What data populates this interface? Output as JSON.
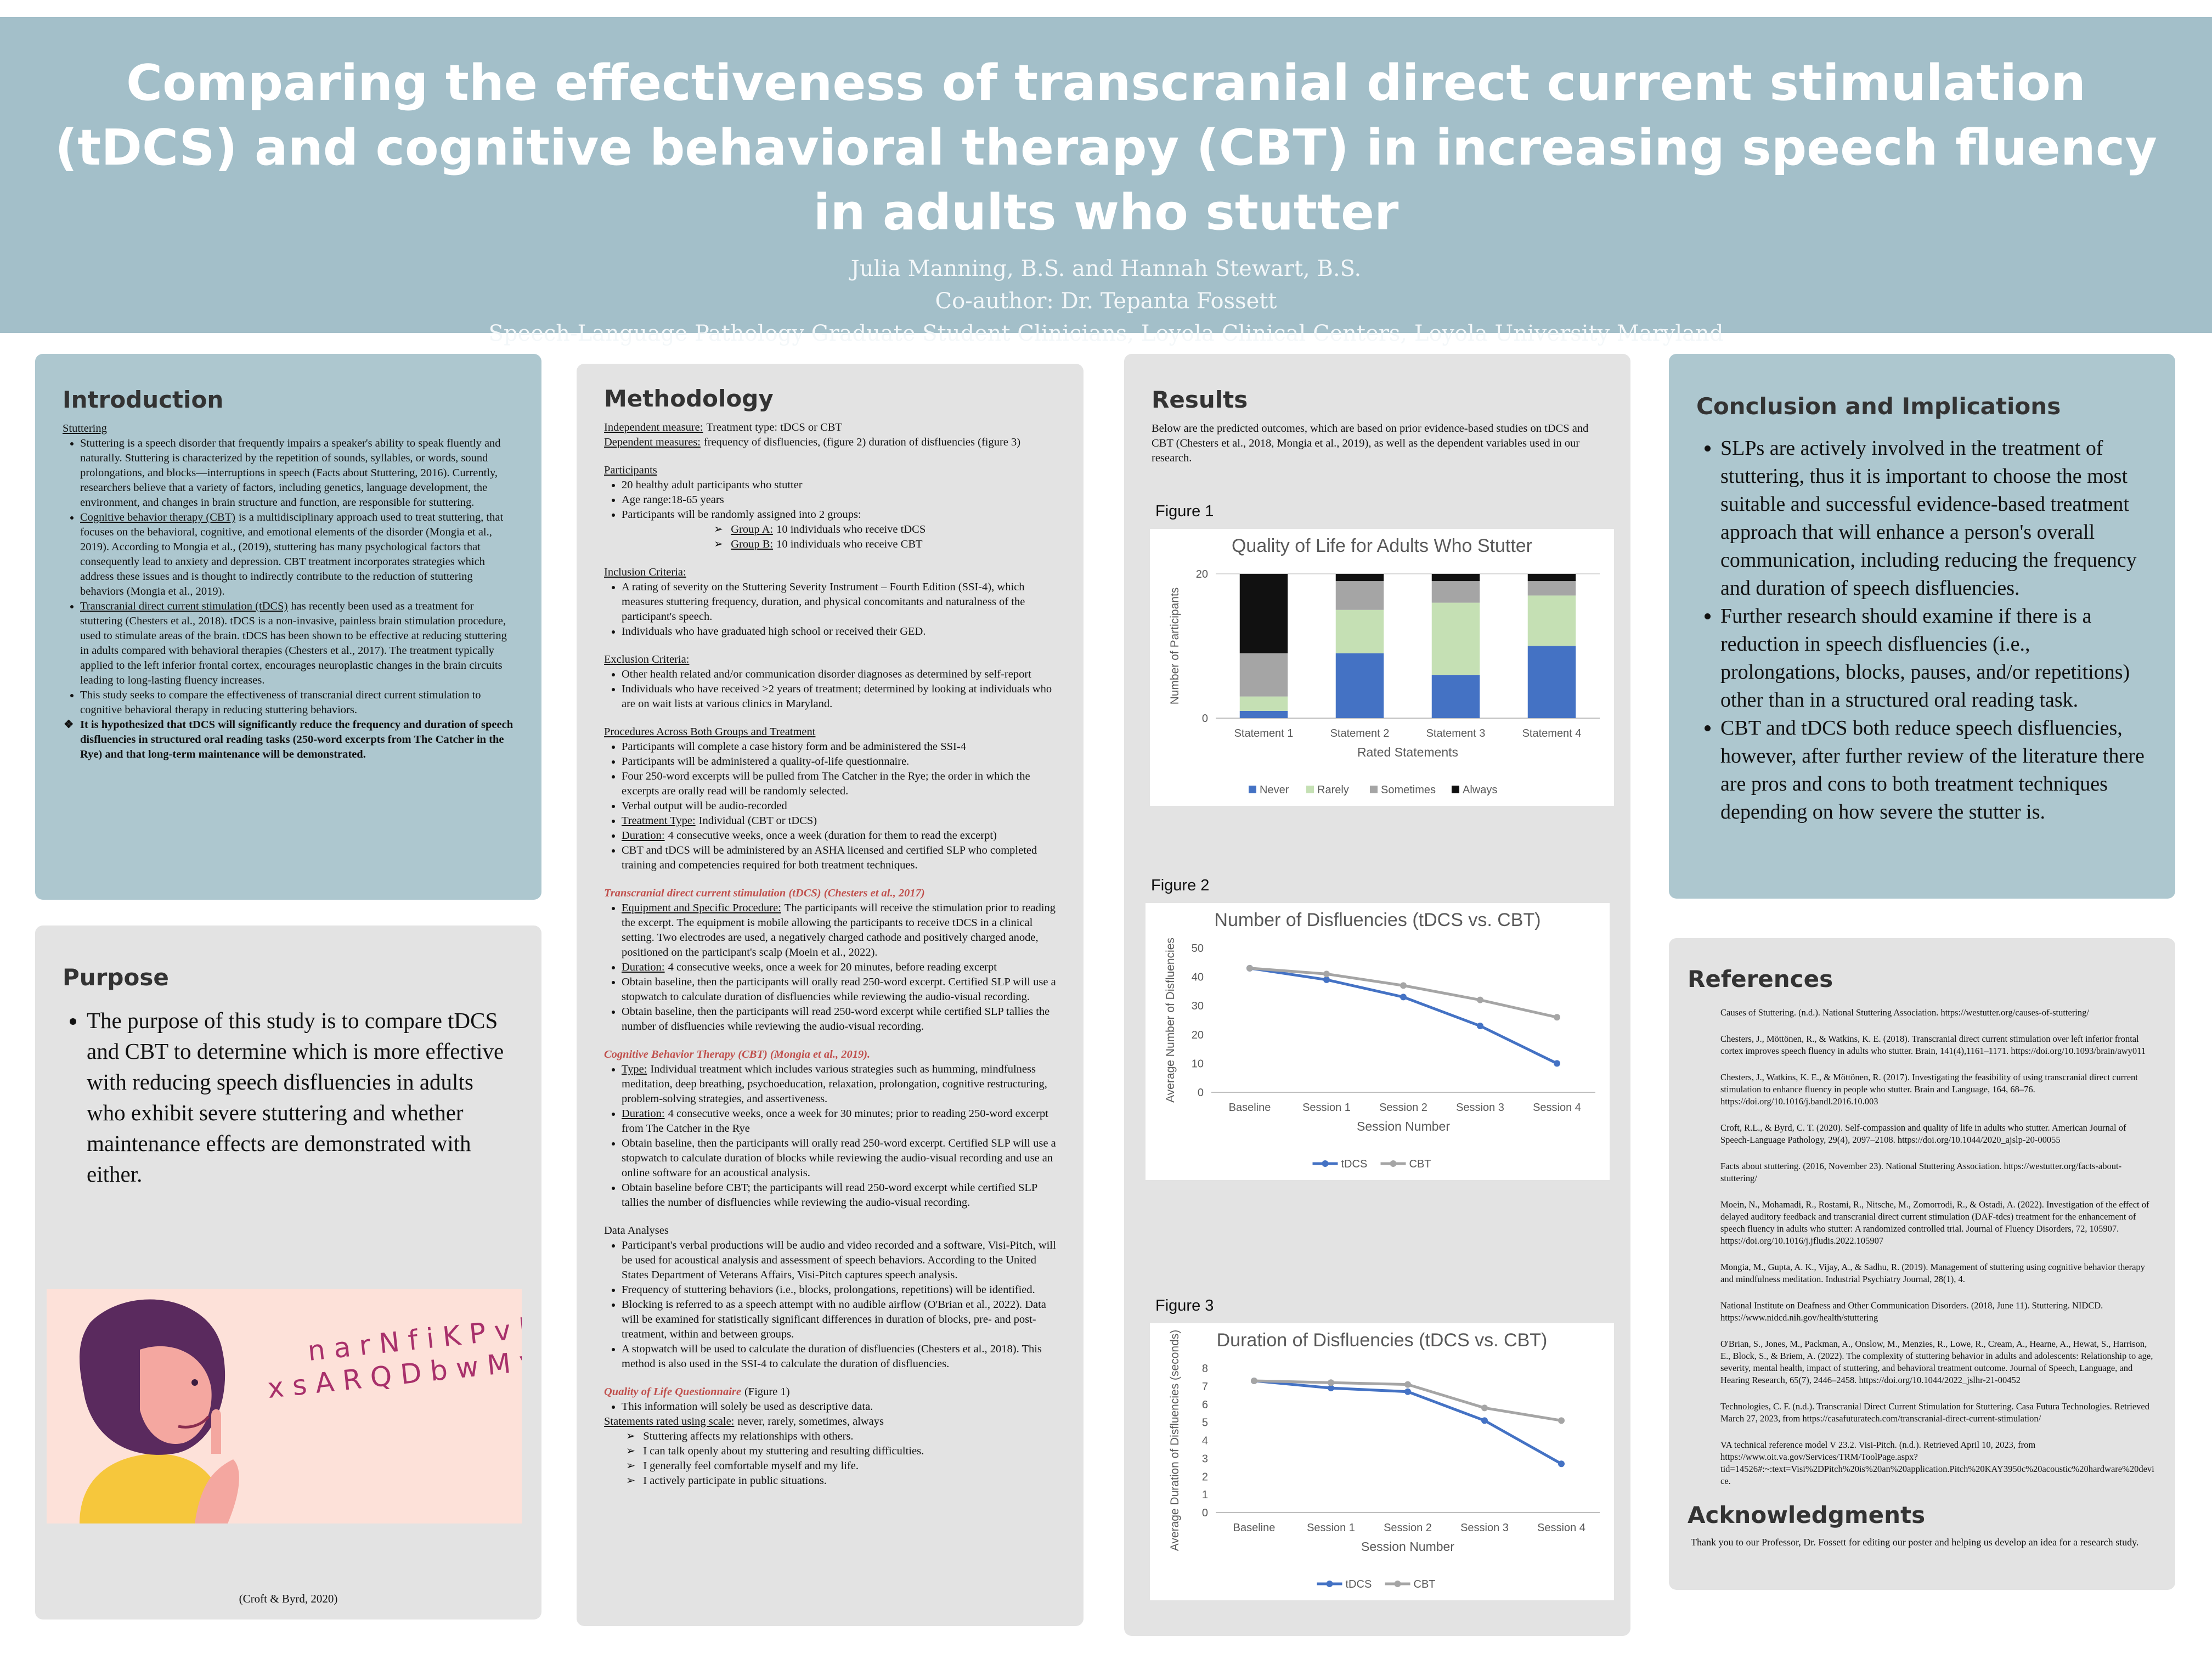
{
  "header": {
    "title": "Comparing the effectiveness of transcranial direct current stimulation (tDCS) and cognitive behavioral therapy (CBT) in increasing speech fluency in adults who stutter",
    "authors": "Julia Manning, B.S. and Hannah Stewart, B.S.",
    "coauthor": "Co-author: Dr. Tepanta Fossett",
    "affiliation": "Speech-Language Pathology Graduate Student Clinicians, Loyola Clinical Centers, Loyola University Maryland"
  },
  "introduction": {
    "heading": "Introduction",
    "subheading": "Stuttering",
    "items": [
      "Stuttering is a speech disorder that frequently impairs a speaker's ability to speak fluently and naturally. Stuttering is characterized by the repetition of sounds, syllables, or words, sound prolongations, and blocks—interruptions in speech (Facts about Stuttering, 2016). Currently, researchers believe that a variety of factors, including genetics, language development, the environment, and changes in brain structure and function, are responsible for stuttering.",
      {
        "label": "Cognitive behavior therapy (CBT)",
        "text": "is a multidisciplinary approach used to treat stuttering, that focuses on the behavioral, cognitive, and emotional elements of the disorder (Mongia et al., 2019). According to Mongia et al., (2019), stuttering has many psychological factors that consequently lead to anxiety and depression. CBT treatment incorporates strategies which address these issues and is thought to indirectly contribute to the reduction of stuttering behaviors (Mongia et al., 2019)."
      },
      {
        "label": "Transcranial direct current stimulation (tDCS)",
        "text": "has recently been used as a treatment for stuttering (Chesters et al., 2018). tDCS is a non-invasive, painless brain stimulation procedure, used to stimulate areas of the brain. tDCS has been shown to be effective at reducing stuttering in adults compared with behavioral therapies (Chesters et al., 2017). The treatment typically applied to the left inferior frontal cortex, encourages neuroplastic changes in the brain circuits leading to long-lasting fluency increases."
      },
      "This study seeks to compare the effectiveness of transcranial direct current stimulation to cognitive behavioral therapy in reducing stuttering behaviors."
    ],
    "hypothesis": "It is hypothesized that tDCS will significantly reduce the frequency and duration of speech disfluencies in structured oral reading tasks (250-word excerpts from The Catcher in the Rye) and that long-term maintenance will be demonstrated."
  },
  "purpose": {
    "heading": "Purpose",
    "text": "The purpose of this study is to compare tDCS and CBT to determine which is more effective with reducing speech disfluencies in adults who exhibit severe stuttering and whether maintenance effects are demonstrated with either.",
    "illustration_letters": [
      "n a r N f i K P v h S",
      "x s A R Q D b w M y F E G"
    ],
    "caption": "(Croft & Byrd, 2020)"
  },
  "methodology": {
    "heading": "Methodology",
    "blocks": [
      {
        "lines": [
          {
            "label": "Independent measure:",
            "text": "Treatment type: tDCS or CBT"
          },
          {
            "label": "Dependent measures:",
            "text": "frequency of disfluencies, (figure 2) duration of disfluencies (figure 3)"
          }
        ]
      },
      {
        "heading": "Participants",
        "items": [
          "20 healthy adult participants who stutter",
          "Age range:18-65 years",
          "Participants will be randomly assigned into 2 groups:"
        ],
        "arrows": [
          {
            "label": "Group A:",
            "text": "10 individuals who receive tDCS"
          },
          {
            "label": "Group B:",
            "text": "10 individuals who receive CBT"
          }
        ]
      },
      {
        "heading": "Inclusion Criteria:",
        "items": [
          "A rating of severity on the Stuttering Severity Instrument – Fourth Edition (SSI-4), which measures stuttering frequency, duration, and physical concomitants and naturalness of the participant's speech.",
          "Individuals who have graduated high school or received their GED."
        ]
      },
      {
        "heading": "Exclusion Criteria:",
        "items": [
          "Other health related and/or communication disorder diagnoses as determined by self-report",
          "Individuals who have received >2 years of treatment; determined by looking at individuals who are on wait lists at various clinics in Maryland."
        ]
      },
      {
        "heading": "Procedures Across Both Groups and Treatment",
        "items": [
          "Participants will complete a case history form and be administered the SSI-4",
          "Participants will be administered a quality-of-life questionnaire.",
          "Four 250-word excerpts will be pulled from The Catcher in the Rye; the order in which the excerpts are orally read will be randomly selected.",
          "Verbal output will be audio-recorded",
          {
            "label": "Treatment Type:",
            "text": "Individual (CBT or tDCS)"
          },
          {
            "label": "Duration:",
            "text": "4 consecutive weeks, once a week (duration for them to read the excerpt)"
          },
          "CBT and tDCS will be administered by an ASHA licensed and certified SLP who completed training and competencies required for both treatment techniques."
        ]
      },
      {
        "subtitle": "Transcranial direct current stimulation (tDCS) (Chesters et al., 2017)",
        "items": [
          {
            "label": "Equipment and Specific Procedure:",
            "text": "The participants will receive the stimulation prior to reading the excerpt. The equipment is mobile allowing the participants to receive tDCS in a clinical setting. Two electrodes are used, a negatively charged cathode and positively charged anode, positioned on the participant's scalp (Moein et al., 2022)."
          },
          {
            "label": "Duration:",
            "text": "4 consecutive weeks, once a week for 20 minutes, before reading excerpt"
          },
          "Obtain baseline, then the participants will orally read 250-word excerpt. Certified SLP will use a stopwatch to calculate duration of disfluencies while reviewing the audio-visual recording.",
          "Obtain baseline, then the participants will read 250-word excerpt while certified SLP tallies the number of disfluencies while reviewing the audio-visual recording."
        ]
      },
      {
        "subtitle": "Cognitive Behavior Therapy (CBT) (Mongia et al., 2019).",
        "items": [
          {
            "label": "Type:",
            "text": "Individual treatment which includes various strategies such as humming, mindfulness meditation, deep breathing, psychoeducation, relaxation, prolongation, cognitive restructuring, problem-solving strategies, and assertiveness."
          },
          {
            "label": "Duration:",
            "text": "4 consecutive weeks, once a week for 30 minutes; prior to reading 250-word excerpt from The Catcher in the Rye"
          },
          "Obtain baseline, then the participants will orally read 250-word excerpt. Certified SLP will use a stopwatch to calculate duration of blocks while reviewing the audio-visual recording and use an online software for an acoustical analysis.",
          "Obtain baseline before CBT; the participants will read 250-word excerpt while certified SLP tallies the number of disfluencies while reviewing the audio-visual recording."
        ]
      },
      {
        "plain": "Data Analyses",
        "items": [
          "Participant's verbal productions will be audio and video recorded and a software, Visi-Pitch, will be used for acoustical analysis and assessment of speech behaviors. According to the United States Department of Veterans Affairs, Visi-Pitch captures speech analysis.",
          "Frequency of stuttering behaviors (i.e., blocks, prolongations, repetitions) will be identified.",
          "Blocking is referred to as a speech attempt with no audible airflow (O'Brian et al., 2022). Data will be examined for statistically significant differences in duration of blocks, pre- and post-treatment, within and between groups.",
          "A stopwatch will be used to calculate the duration of disfluencies (Chesters et al., 2018). This method is also used in the SSI-4 to calculate the duration of disfluencies."
        ]
      },
      {
        "subtitle": "Quality of Life Questionnaire",
        "note": "(Figure 1)",
        "items": [
          "This information will solely be used as descriptive data."
        ],
        "lines": [
          {
            "label": "Statements rated using scale:",
            "text": "never, rarely, sometimes, always"
          }
        ],
        "arrows": [
          "Stuttering affects my relationships with others.",
          "I can talk openly about my stuttering and resulting difficulties.",
          "I generally feel comfortable myself and my life.",
          "I actively participate in public situations."
        ]
      }
    ]
  },
  "results": {
    "heading": "Results",
    "text": "Below are the predicted outcomes, which are based on prior evidence-based studies on tDCS and CBT (Chesters et al., 2018, Mongia et al., 2019), as well as the dependent variables used in our research."
  },
  "chart_data": [
    {
      "type": "stacked_bar",
      "figure": "Figure 1",
      "title": "Quality of Life for Adults Who Stutter",
      "categories": [
        "Statement 1",
        "Statement 2",
        "Statement 3",
        "Statement 4"
      ],
      "series": [
        {
          "name": "Never",
          "color": "#4472c4",
          "values": [
            1,
            9,
            6,
            10
          ]
        },
        {
          "name": "Rarely",
          "color": "#c5e0b4",
          "values": [
            2,
            6,
            10,
            7
          ]
        },
        {
          "name": "Sometimes",
          "color": "#a5a5a5",
          "values": [
            6,
            4,
            3,
            2
          ]
        },
        {
          "name": "Always",
          "color": "#111111",
          "values": [
            11,
            1,
            1,
            1
          ]
        }
      ],
      "xlabel": "Rated Statements",
      "ylabel": "Number of Participants",
      "ylim": [
        0,
        20
      ],
      "yticks": [
        0,
        20
      ],
      "grid": true,
      "legend": "bottom"
    },
    {
      "type": "line",
      "figure": "Figure 2",
      "title": "Number of Disfluencies (tDCS vs. CBT)",
      "categories": [
        "Baseline",
        "Session 1",
        "Session 2",
        "Session 3",
        "Session 4"
      ],
      "series": [
        {
          "name": "tDCS",
          "color": "#4472c4",
          "values": [
            43,
            39,
            33,
            23,
            10
          ]
        },
        {
          "name": "CBT",
          "color": "#a5a5a5",
          "values": [
            43,
            41,
            37,
            32,
            26
          ]
        }
      ],
      "xlabel": "Session Number",
      "ylabel": "Average Number of Disfluencies",
      "ylim": [
        0,
        50
      ],
      "yticks": [
        0,
        10,
        20,
        30,
        40,
        50
      ],
      "grid": false,
      "legend": "bottom"
    },
    {
      "type": "line",
      "figure": "Figure 3",
      "title": "Duration of Disfluencies (tDCS vs. CBT)",
      "categories": [
        "Baseline",
        "Session 1",
        "Session 2",
        "Session 3",
        "Session 4"
      ],
      "series": [
        {
          "name": "tDCS",
          "color": "#4472c4",
          "values": [
            7.3,
            6.9,
            6.7,
            5.1,
            2.7
          ]
        },
        {
          "name": "CBT",
          "color": "#a5a5a5",
          "values": [
            7.3,
            7.2,
            7.1,
            5.8,
            5.1
          ]
        }
      ],
      "xlabel": "Session Number",
      "ylabel": "Average Duration of Disfluencies (seconds)",
      "ylim": [
        0,
        8
      ],
      "yticks": [
        0,
        1,
        2,
        3,
        4,
        5,
        6,
        7,
        8
      ],
      "grid": false,
      "legend": "bottom"
    }
  ],
  "conclusion": {
    "heading": "Conclusion and Implications",
    "items": [
      "SLPs are actively involved in the treatment of stuttering, thus it is important to choose the most suitable and successful evidence-based treatment approach that will enhance a person's overall communication, including reducing the frequency and duration of speech disfluencies.",
      "Further research should examine if there is a reduction in speech disfluencies (i.e., prolongations, blocks, pauses, and/or repetitions) other than in a structured oral reading task.",
      "CBT and tDCS both reduce speech disfluencies, however, after further review of the literature there are pros and cons to both treatment techniques depending on how severe the stutter is."
    ]
  },
  "references": {
    "heading": "References",
    "items": [
      "Causes of Stuttering. (n.d.). National Stuttering Association. https://westutter.org/causes-of-stuttering/",
      "Chesters, J., Möttönen, R., & Watkins, K. E. (2018). Transcranial direct current stimulation over left inferior frontal cortex improves speech fluency in adults who stutter. Brain, 141(4),1161–1171. https://doi.org/10.1093/brain/awy011",
      "Chesters, J., Watkins, K. E., & Möttönen, R. (2017). Investigating the feasibility of using transcranial direct current stimulation to enhance fluency in people who stutter. Brain and Language, 164, 68–76. https://doi.org/10.1016/j.bandl.2016.10.003",
      "Croft, R.L., & Byrd, C. T. (2020). Self-compassion and quality of life in adults who stutter. American Journal of Speech-Language Pathology, 29(4), 2097–2108. https://doi.org/10.1044/2020_ajslp-20-00055",
      "Facts about stuttering. (2016, November 23). National Stuttering Association. https://westutter.org/facts-about-stuttering/",
      "Moein, N., Mohamadi, R., Rostami, R., Nitsche, M., Zomorrodi, R., & Ostadi, A. (2022). Investigation of the effect of delayed auditory feedback and transcranial direct current stimulation (DAF-tdcs) treatment for the enhancement of speech fluency in adults who stutter: A randomized controlled trial. Journal of Fluency Disorders, 72, 105907. https://doi.org/10.1016/j.jfludis.2022.105907",
      "Mongia, M., Gupta, A. K., Vijay, A., & Sadhu, R. (2019). Management of stuttering using cognitive behavior therapy and mindfulness meditation. Industrial Psychiatry Journal, 28(1), 4.",
      "National Institute on Deafness and Other Communication Disorders. (2018, June 11). Stuttering. NIDCD. https://www.nidcd.nih.gov/health/stuttering",
      "O'Brian, S., Jones, M., Packman, A., Onslow, M., Menzies, R., Lowe, R., Cream, A., Hearne, A., Hewat, S., Harrison, E., Block, S., & Briem, A. (2022). The complexity of stuttering behavior in adults and adolescents: Relationship to age, severity, mental health, impact of stuttering, and behavioral treatment outcome. Journal of Speech, Language, and Hearing Research, 65(7), 2446–2458. https://doi.org/10.1044/2022_jslhr-21-00452",
      "Technologies, C. F. (n.d.). Transcranial Direct Current Stimulation for Stuttering. Casa Futura Technologies. Retrieved March 27, 2023, from https://casafuturatech.com/transcranial-direct-current-stimulation/",
      "VA technical reference model V 23.2. Visi-Pitch. (n.d.). Retrieved April 10, 2023, from https://www.oit.va.gov/Services/TRM/ToolPage.aspx?tid=14526#:~:text=Visi%2DPitch%20is%20an%20application.Pitch%20KAY3950c%20acoustic%20hardware%20device."
    ]
  },
  "acknowledgments": {
    "heading": "Acknowledgments",
    "text": "Thank you to our Professor, Dr. Fossett for editing our poster and helping us develop an idea for a research study."
  }
}
